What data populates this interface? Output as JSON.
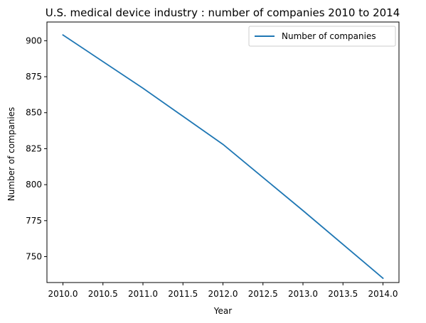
{
  "chart_data": {
    "type": "line",
    "title": "U.S. medical device industry : number of companies 2010 to 2014",
    "xlabel": "Year",
    "ylabel": "Number of companies",
    "xlim": [
      2009.8,
      2014.2
    ],
    "ylim": [
      732,
      913
    ],
    "x_ticks": [
      2010.0,
      2010.5,
      2011.0,
      2011.5,
      2012.0,
      2012.5,
      2013.0,
      2013.5,
      2014.0
    ],
    "x_tick_labels": [
      "2010.0",
      "2010.5",
      "2011.0",
      "2011.5",
      "2012.0",
      "2012.5",
      "2013.0",
      "2013.5",
      "2014.0"
    ],
    "y_ticks": [
      750,
      775,
      800,
      825,
      850,
      875,
      900
    ],
    "y_tick_labels": [
      "750",
      "775",
      "800",
      "825",
      "850",
      "875",
      "900"
    ],
    "grid": false,
    "legend_position": "top-right",
    "series": [
      {
        "name": "Number of companies",
        "color": "#1f77b4",
        "x": [
          2010,
          2011,
          2012,
          2013,
          2014
        ],
        "values": [
          904,
          867,
          828,
          782,
          735
        ]
      }
    ]
  }
}
